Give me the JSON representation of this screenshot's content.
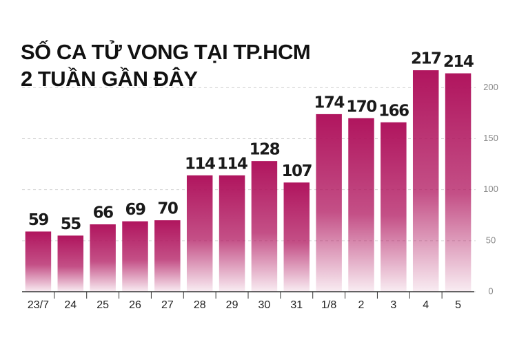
{
  "chart_data": {
    "type": "bar",
    "title": "SỐ CA TỬ VONG TẠI TP.HCM",
    "subtitle": "2 TUẦN GẦN ĐÂY",
    "categories": [
      "23/7",
      "24",
      "25",
      "26",
      "27",
      "28",
      "29",
      "30",
      "31",
      "1/8",
      "2",
      "3",
      "4",
      "5"
    ],
    "values": [
      59,
      55,
      66,
      69,
      70,
      114,
      114,
      128,
      107,
      174,
      170,
      166,
      217,
      214
    ],
    "color": "#b0155e",
    "ylim": [
      0,
      240
    ],
    "yticks": [
      0,
      50,
      100,
      150,
      200
    ],
    "grid": true
  }
}
